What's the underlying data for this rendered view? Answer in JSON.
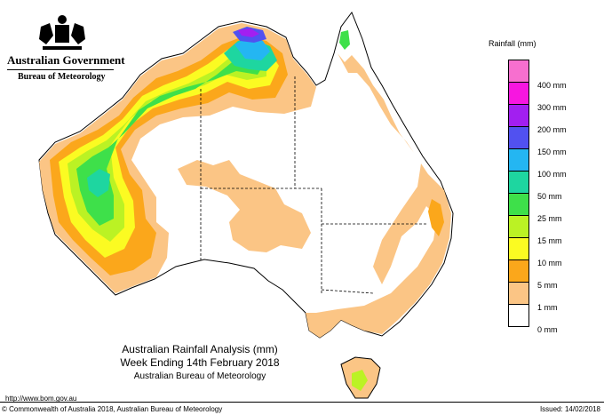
{
  "header": {
    "government": "Australian Government",
    "bureau": "Bureau of Meteorology"
  },
  "caption": {
    "line1": "Australian Rainfall Analysis (mm)",
    "line2": "Week Ending 14th February 2018",
    "line3": "Australian Bureau of Meteorology"
  },
  "footer": {
    "url": "http://www.bom.gov.au",
    "copyright": "© Commonwealth of Australia 2018, Australian Bureau of Meteorology",
    "issued": "Issued: 14/02/2018"
  },
  "legend": {
    "title": "Rainfall (mm)",
    "items": [
      {
        "label": "",
        "color": "#f76fcf"
      },
      {
        "label": "400 mm",
        "color": "#f716e0"
      },
      {
        "label": "300 mm",
        "color": "#a21ff0"
      },
      {
        "label": "200 mm",
        "color": "#5151f0"
      },
      {
        "label": "150 mm",
        "color": "#24b6f2"
      },
      {
        "label": "100 mm",
        "color": "#1ed6a0"
      },
      {
        "label": "50 mm",
        "color": "#3ee04a"
      },
      {
        "label": "25 mm",
        "color": "#bbf224"
      },
      {
        "label": "15 mm",
        "color": "#fbfb22"
      },
      {
        "label": "10 mm",
        "color": "#fba71b"
      },
      {
        "label": "5 mm",
        "color": "#fbc585"
      },
      {
        "label": "1 mm",
        "color": "#ffffff"
      },
      {
        "label": "0 mm",
        "color": ""
      }
    ]
  }
}
